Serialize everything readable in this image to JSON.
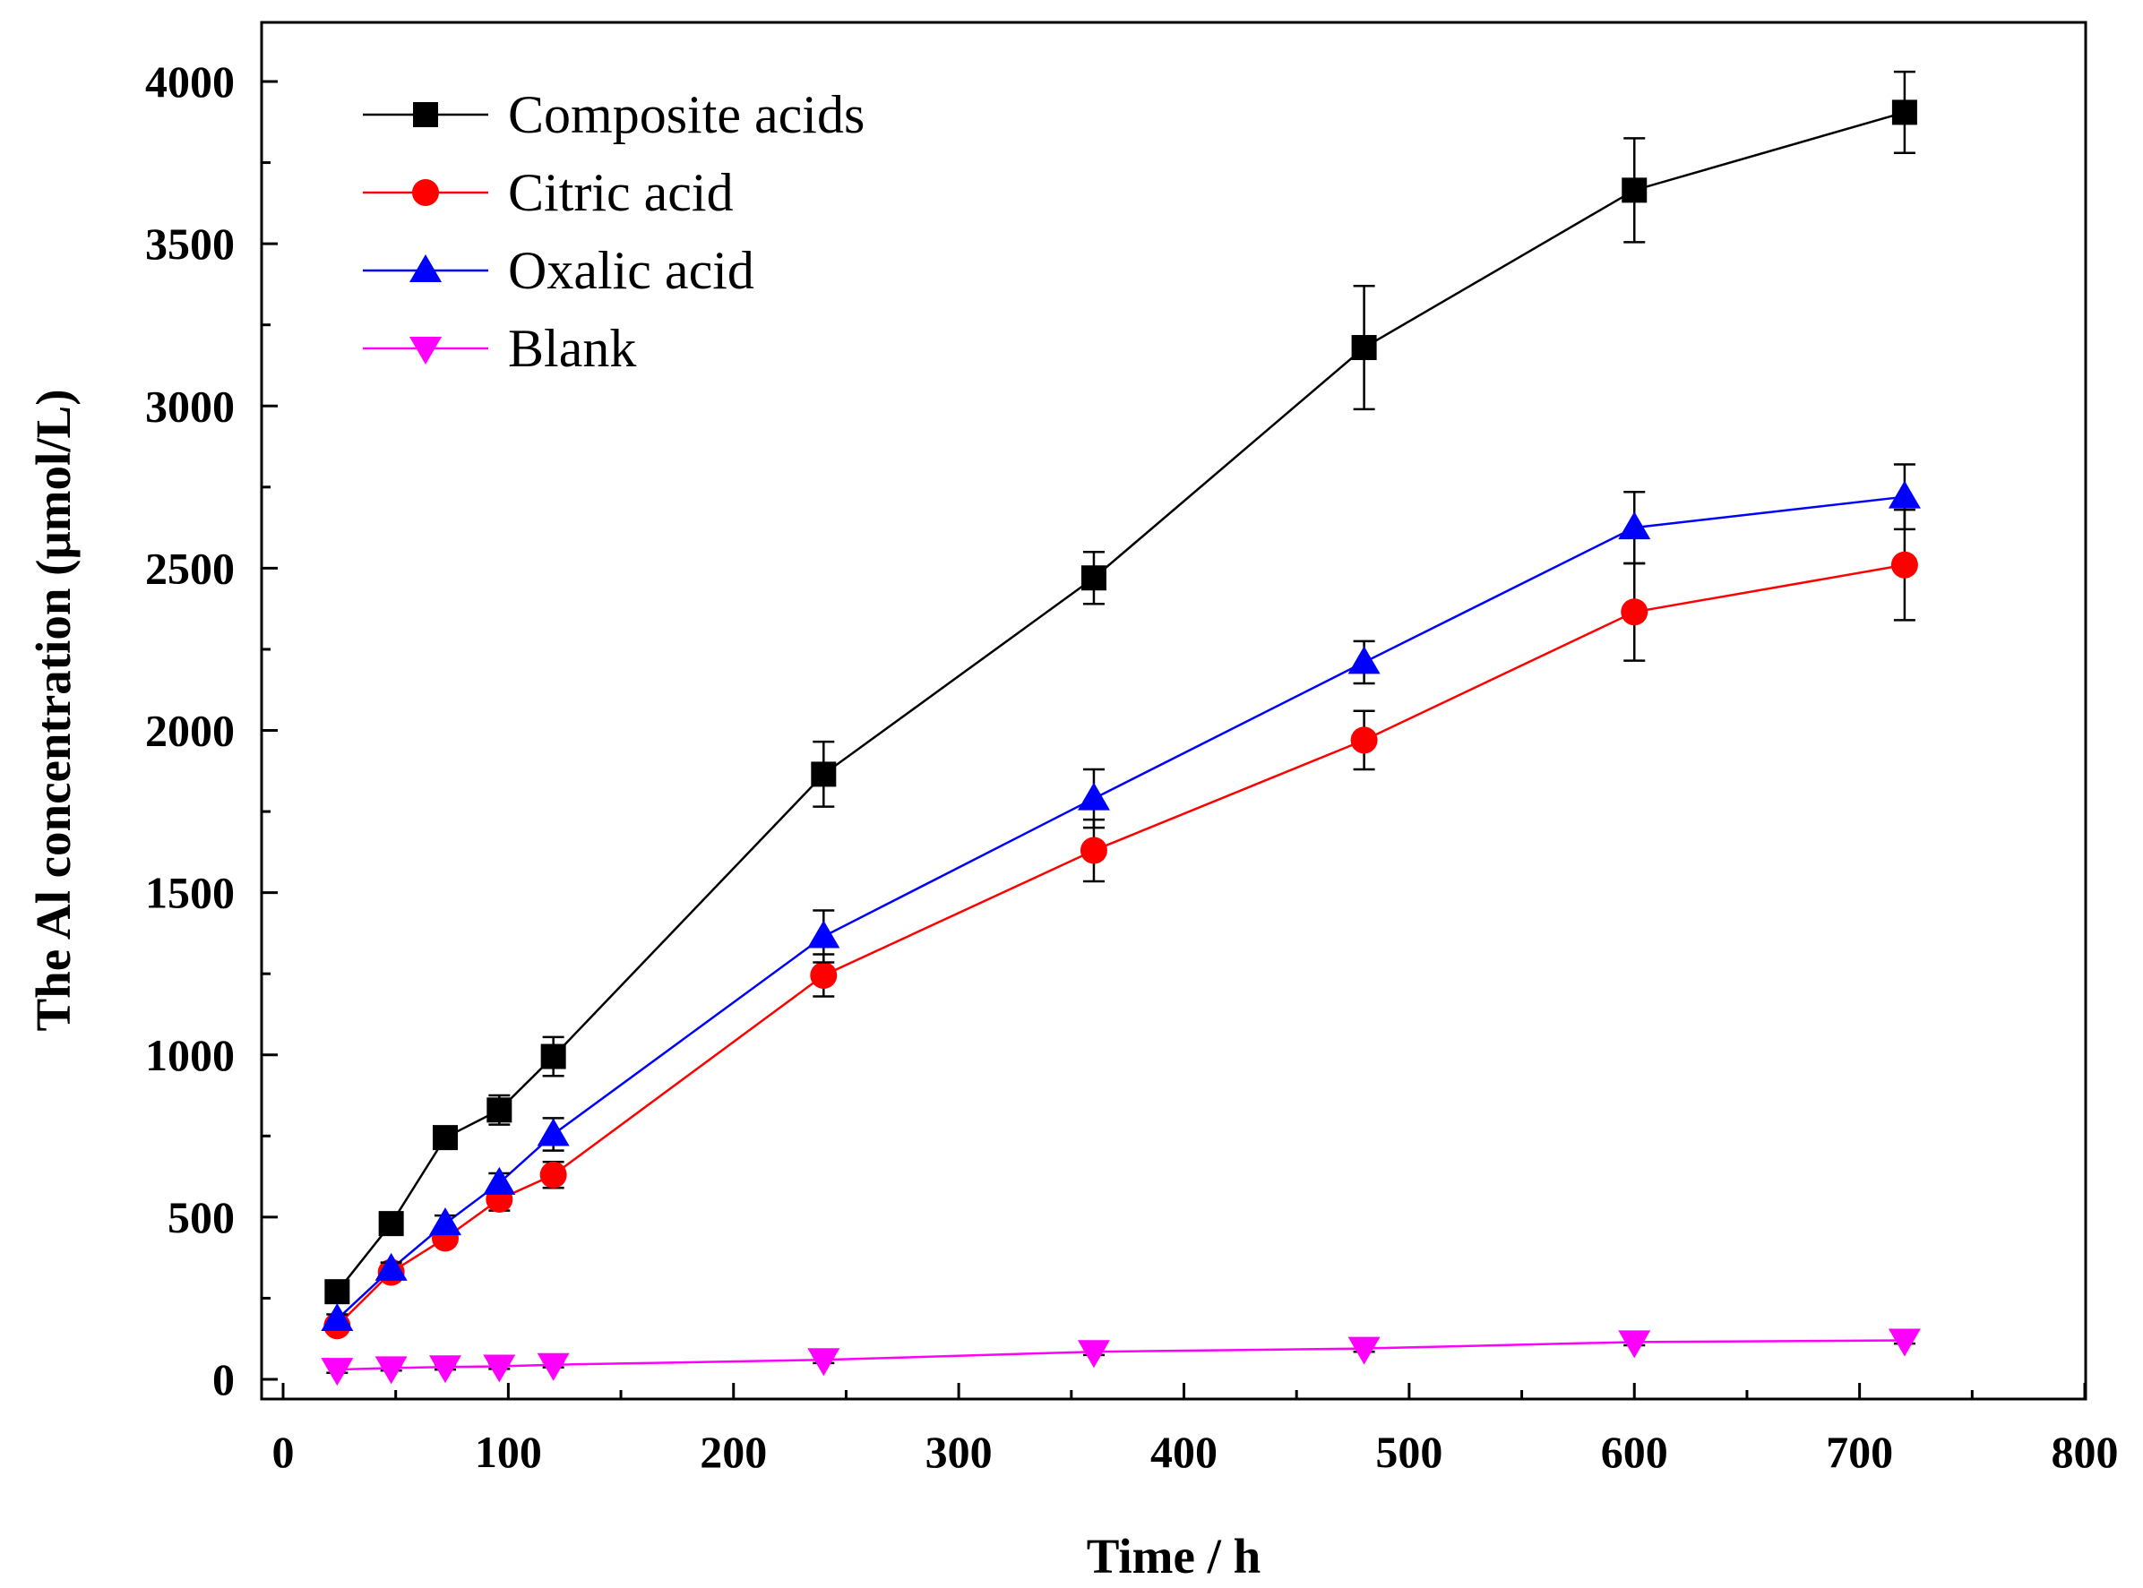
{
  "chart_data": {
    "type": "line",
    "title": "",
    "xlabel": "Time / h",
    "ylabel": "The Al concentration (μmol/L)",
    "xlim": [
      0,
      800
    ],
    "ylim": [
      -80,
      4160
    ],
    "xticks": [
      0,
      100,
      200,
      300,
      400,
      500,
      600,
      700,
      800
    ],
    "yticks": [
      0,
      500,
      1000,
      1500,
      2000,
      2500,
      3000,
      3500,
      4000
    ],
    "grid": false,
    "legend_position": "top-left",
    "x": [
      24,
      48,
      72,
      96,
      120,
      240,
      360,
      480,
      600,
      720
    ],
    "series": [
      {
        "name": "Composite acids",
        "color": "#000000",
        "marker": "square",
        "values": [
          270,
          480,
          745,
          830,
          995,
          1865,
          2470,
          3180,
          3665,
          3905
        ],
        "errors": [
          20,
          25,
          30,
          45,
          60,
          100,
          80,
          190,
          160,
          125
        ]
      },
      {
        "name": "Citric acid",
        "color": "#ff0000",
        "marker": "circle",
        "values": [
          165,
          330,
          435,
          555,
          630,
          1245,
          1630,
          1970,
          2365,
          2510
        ],
        "errors": [
          15,
          20,
          20,
          35,
          40,
          65,
          95,
          90,
          150,
          170
        ]
      },
      {
        "name": "Oxalic acid",
        "color": "#0000ff",
        "marker": "triangle-up",
        "values": [
          185,
          340,
          480,
          605,
          755,
          1365,
          1790,
          2210,
          2625,
          2720
        ],
        "errors": [
          15,
          20,
          25,
          30,
          50,
          80,
          90,
          65,
          110,
          100
        ]
      },
      {
        "name": "Blank",
        "color": "#ff00ff",
        "marker": "triangle-down",
        "values": [
          30,
          35,
          38,
          40,
          45,
          60,
          85,
          95,
          115,
          120
        ],
        "errors": [
          10,
          8,
          8,
          8,
          8,
          10,
          10,
          10,
          10,
          10
        ]
      }
    ]
  }
}
